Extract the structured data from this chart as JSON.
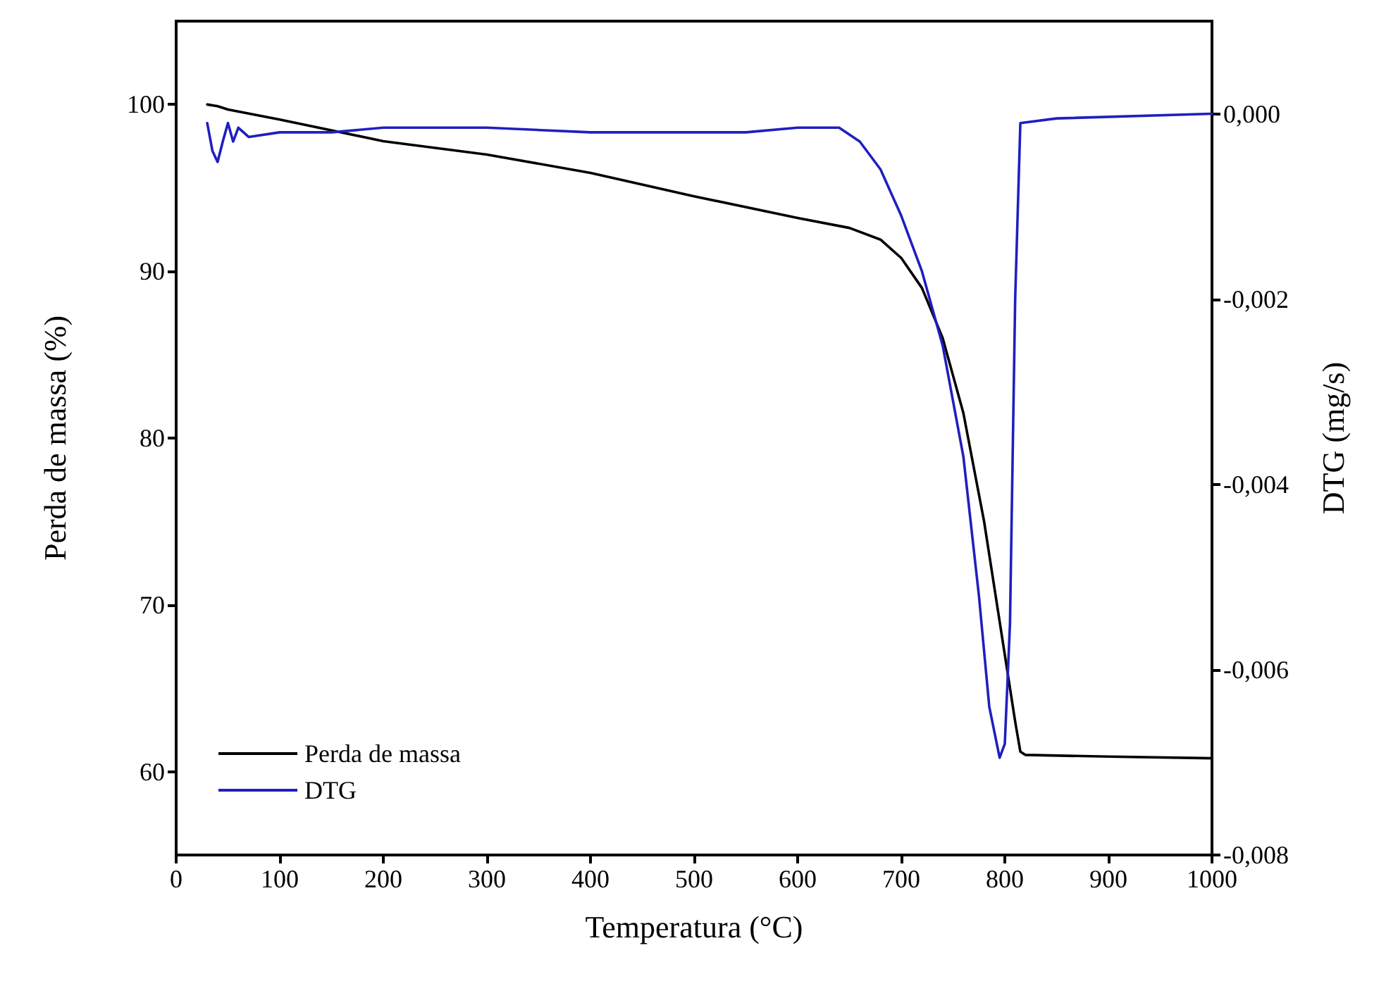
{
  "chart_data": {
    "type": "line",
    "xlabel": "Temperatura (°C)",
    "ylabel": "Perda de massa (%)",
    "y2label": "DTG (mg/s)",
    "xlim": [
      0,
      1000
    ],
    "xticks": [
      0,
      100,
      200,
      300,
      400,
      500,
      600,
      700,
      800,
      900,
      1000
    ],
    "ylim": [
      55,
      105
    ],
    "yticks": [
      60,
      70,
      80,
      90,
      100
    ],
    "y2lim": [
      -0.008,
      0.001
    ],
    "y2ticks": [
      {
        "value": -0.008,
        "label": "-0,008"
      },
      {
        "value": -0.006,
        "label": "-0,006"
      },
      {
        "value": -0.004,
        "label": "-0,004"
      },
      {
        "value": -0.002,
        "label": "-0,002"
      },
      {
        "value": 0,
        "label": "0,000"
      }
    ],
    "grid": false,
    "legend": "bottom left",
    "marker": "none",
    "line_style": "solid",
    "series": [
      {
        "name": "Perda de massa",
        "color": "#000000",
        "x": [
          30,
          40,
          50,
          100,
          200,
          300,
          400,
          500,
          600,
          650,
          680,
          700,
          720,
          740,
          760,
          780,
          800,
          810,
          815,
          820,
          900,
          1000
        ],
        "values": [
          100,
          99.9,
          99.7,
          99.1,
          97.8,
          97.0,
          95.9,
          94.5,
          93.2,
          92.6,
          91.9,
          90.8,
          89.0,
          86.0,
          81.5,
          75.0,
          67.0,
          63.0,
          61.2,
          61.0,
          60.9,
          60.8
        ]
      },
      {
        "name": "DTG",
        "color": "#1f1fbf",
        "axis": "y2",
        "x": [
          30,
          35,
          40,
          45,
          50,
          55,
          60,
          70,
          100,
          150,
          200,
          300,
          400,
          500,
          550,
          600,
          640,
          660,
          680,
          700,
          720,
          740,
          760,
          775,
          785,
          795,
          800,
          805,
          810,
          815,
          850,
          1000
        ],
        "values": [
          -0.0001,
          -0.0004,
          -0.00052,
          -0.0003,
          -0.0001,
          -0.0003,
          -0.00015,
          -0.00025,
          -0.0002,
          -0.0002,
          -0.00015,
          -0.00015,
          -0.0002,
          -0.0002,
          -0.0002,
          -0.00015,
          -0.00015,
          -0.0003,
          -0.0006,
          -0.0011,
          -0.0017,
          -0.0025,
          -0.0037,
          -0.0052,
          -0.0064,
          -0.00695,
          -0.0068,
          -0.0055,
          -0.002,
          -0.0001,
          -5e-05,
          0
        ]
      }
    ]
  }
}
